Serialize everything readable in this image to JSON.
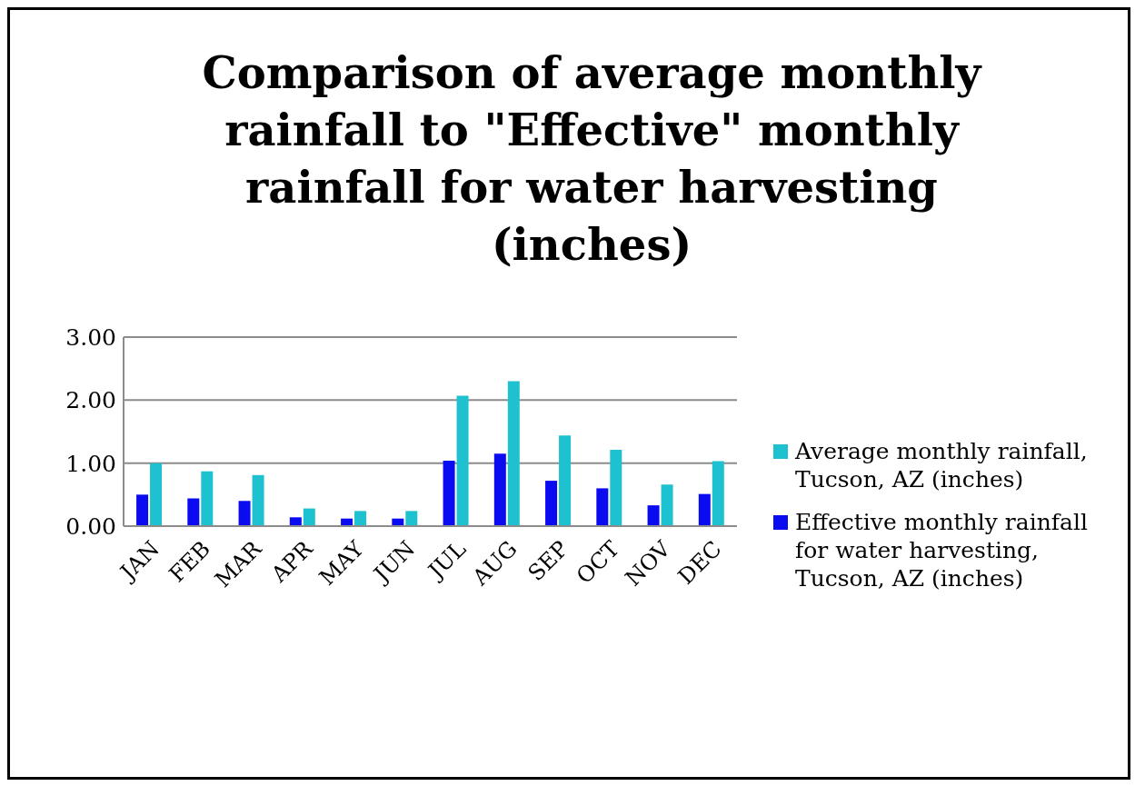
{
  "chart_data": {
    "type": "bar",
    "title": "Comparison of average monthly rainfall to \"Effective\" monthly rainfall for water harvesting (inches)",
    "categories": [
      "JAN",
      "FEB",
      "MAR",
      "APR",
      "MAY",
      "JUN",
      "JUL",
      "AUG",
      "SEP",
      "OCT",
      "NOV",
      "DEC"
    ],
    "series": [
      {
        "name": "Effective monthly rainfall for water harvesting, Tucson, AZ (inches)",
        "color": "#0b0bf2",
        "values": [
          0.5,
          0.44,
          0.4,
          0.14,
          0.12,
          0.12,
          1.04,
          1.15,
          0.72,
          0.6,
          0.33,
          0.51
        ]
      },
      {
        "name": "Average monthly rainfall, Tucson, AZ (inches)",
        "color": "#1ec1cf",
        "values": [
          1.0,
          0.87,
          0.81,
          0.28,
          0.24,
          0.24,
          2.07,
          2.3,
          1.44,
          1.21,
          0.66,
          1.03
        ]
      }
    ],
    "ylim": [
      0,
      3
    ],
    "yticks": [
      {
        "value": 0,
        "label": "0.00"
      },
      {
        "value": 1,
        "label": "1.00"
      },
      {
        "value": 2,
        "label": "2.00"
      },
      {
        "value": 3,
        "label": "3.00"
      }
    ],
    "grid": "y",
    "legend": "right"
  }
}
